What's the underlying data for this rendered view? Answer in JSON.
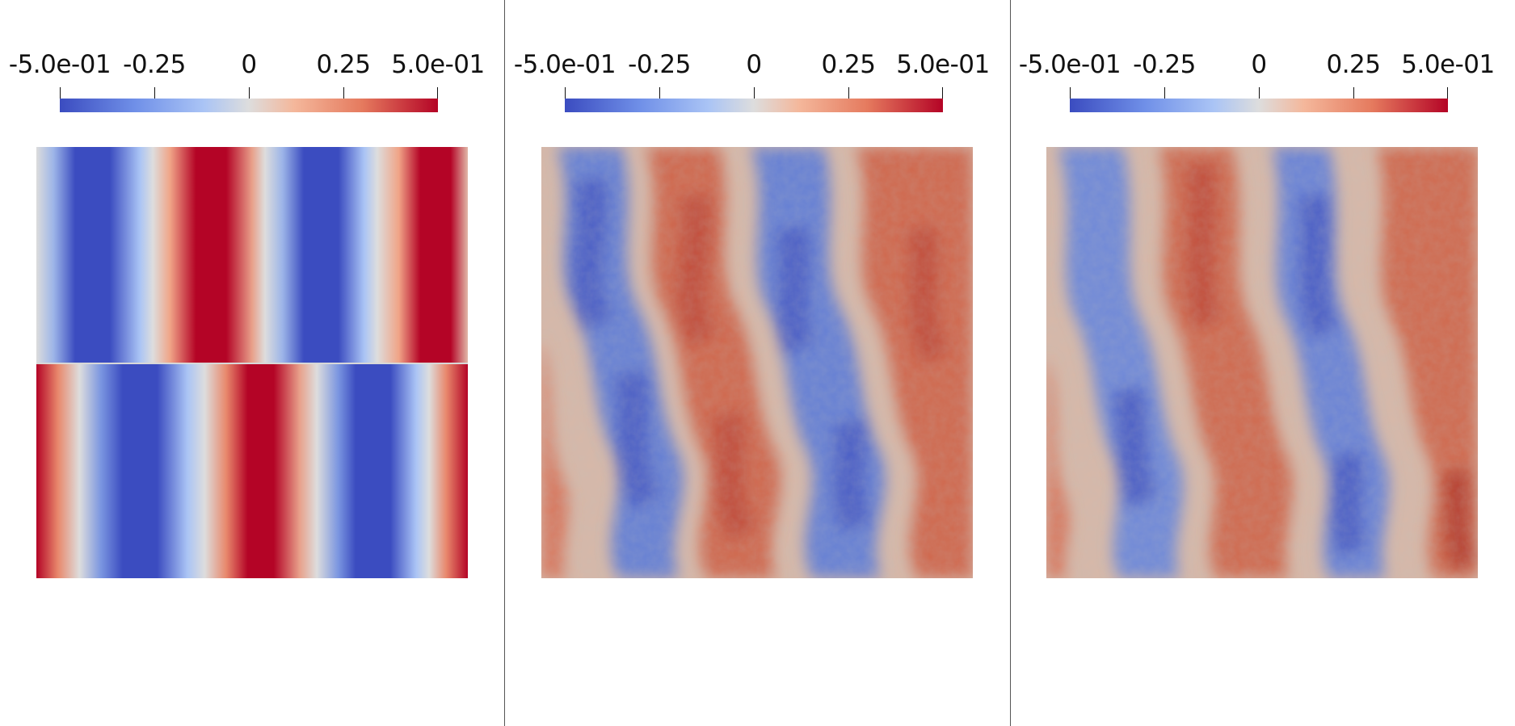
{
  "colorbar": {
    "ticks": [
      "-5.0e-01",
      "-0.25",
      "0",
      "0.25",
      "5.0e-01"
    ],
    "min": -0.5,
    "max": 0.5,
    "colormap": [
      "#3b4cc0",
      "#dddddd",
      "#b40426"
    ]
  },
  "panels": [
    {
      "name": "left-panel",
      "kind": "sharp-split-stripes"
    },
    {
      "name": "middle-panel",
      "kind": "noisy-wavy-stripes"
    },
    {
      "name": "right-panel",
      "kind": "noisy-wavy-stripes"
    }
  ]
}
